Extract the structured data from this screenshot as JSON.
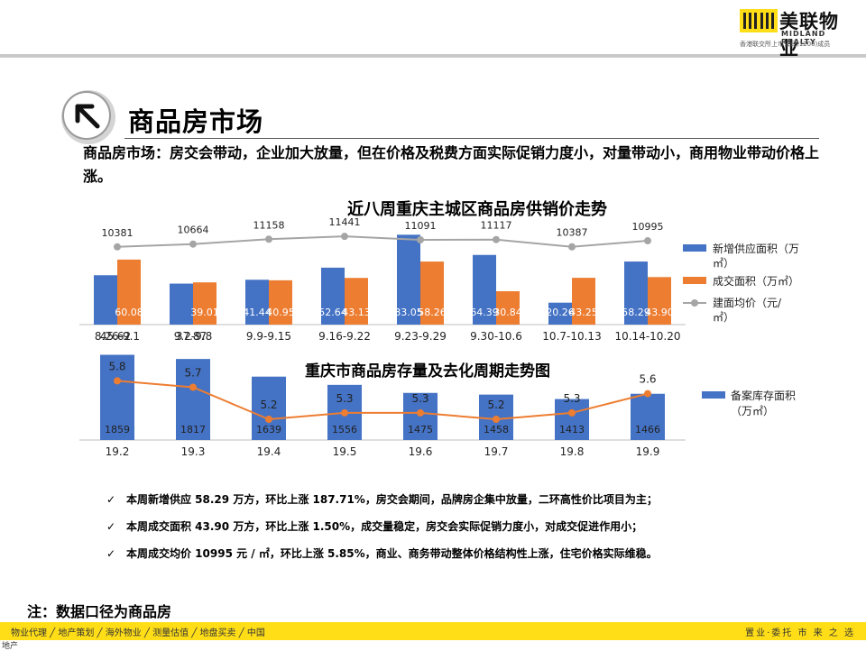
{
  "brand": {
    "name_cn": "美联物业",
    "name_en": "MIDLAND REALTY",
    "tagline": "香港联交所上市公司(1200)成员",
    "accent_color": "#ffde17"
  },
  "page": {
    "title": "商品房市场",
    "title_icon": "arrow-up-left-icon",
    "intro": "商品房市场：房交会带动，企业加大放量，但在价格及税费方面实际促销力度小，对量带动小，商用物业带动价格上涨。"
  },
  "chart_data": [
    {
      "type": "bar",
      "title": "近八周重庆主城区商品房供销价走势",
      "categories": [
        "8.26-9.1",
        "9.2-9.8",
        "9.9-9.15",
        "9.16-9.22",
        "9.23-9.29",
        "9.30-10.6",
        "10.7-10.13",
        "10.14-10.20"
      ],
      "category_overlays": [
        "45.62",
        "37.87"
      ],
      "series": [
        {
          "name": "新增供应面积（万㎡）",
          "kind": "bar",
          "color": "#4472c4",
          "values": [
            45.62,
            37.87,
            41.44,
            52.64,
            83.05,
            64.39,
            20.26,
            58.29
          ],
          "labels": [
            "",
            "",
            "41.44",
            "52.64",
            "83.05",
            "64.39",
            "20.26",
            "58.29"
          ]
        },
        {
          "name": "成交面积（万㎡）",
          "kind": "bar",
          "color": "#ed7d31",
          "values": [
            60.08,
            39.01,
            40.95,
            43.13,
            58.26,
            30.84,
            43.25,
            43.9
          ],
          "labels": [
            "60.08",
            "39.01",
            "40.95",
            "43.13",
            "58.26",
            "30.84",
            "43.25",
            "43.90"
          ]
        },
        {
          "name": "建面均价（元/㎡）",
          "kind": "line",
          "color": "#a5a5a5",
          "values": [
            10381,
            10664,
            11158,
            11441,
            11091,
            11117,
            10387,
            10995
          ],
          "labels": [
            "10381",
            "10664",
            "11158",
            "11441",
            "11091",
            "11117",
            "10387",
            "10995"
          ]
        }
      ],
      "legend": "right",
      "grid": false
    },
    {
      "type": "bar",
      "title": "重庆市商品房存量及去化周期走势图",
      "categories": [
        "19.2",
        "19.3",
        "19.4",
        "19.5",
        "19.6",
        "19.7",
        "19.8",
        "19.9"
      ],
      "series": [
        {
          "name": "备案库存面积（万㎡）",
          "kind": "bar",
          "color": "#4472c4",
          "values": [
            1859,
            1817,
            1639,
            1556,
            1475,
            1458,
            1413,
            1466
          ],
          "labels": [
            "1859",
            "1817",
            "1639",
            "1556",
            "1475",
            "1458",
            "1413",
            "1466"
          ]
        },
        {
          "name": "",
          "kind": "line",
          "color": "#ed7d31",
          "values": [
            5.8,
            5.7,
            5.2,
            5.3,
            5.3,
            5.2,
            5.3,
            5.6
          ],
          "labels": [
            "5.8",
            "5.7",
            "5.2",
            "5.3",
            "5.3",
            "5.2",
            "5.3",
            "5.6"
          ]
        }
      ],
      "legend": "right",
      "grid": false
    }
  ],
  "bullets": [
    "本周新增供应 58.29 万方，环比上涨 187.71%，房交会期间，品牌房企集中放量，二环高性价比项目为主；",
    "本周成交面积 43.90 万方，环比上涨 1.50%，成交量稳定，房交会实际促销力度小，对成交促进作用小；",
    "本周成交均价 10995 元 / ㎡，环比上涨 5.85%，商业、商务带动整体价格结构性上涨，住宅价格实际维稳。"
  ],
  "bullet_mark": "✓",
  "note": "注：数据口径为商品房",
  "footer": {
    "left": "物业代理 ╱  地产策划 ╱  海外物业 ╱  测量估值 ╱  地盘买卖 ╱  中国",
    "right": "置业·委托 市 来 之 选",
    "corner": "地产"
  }
}
